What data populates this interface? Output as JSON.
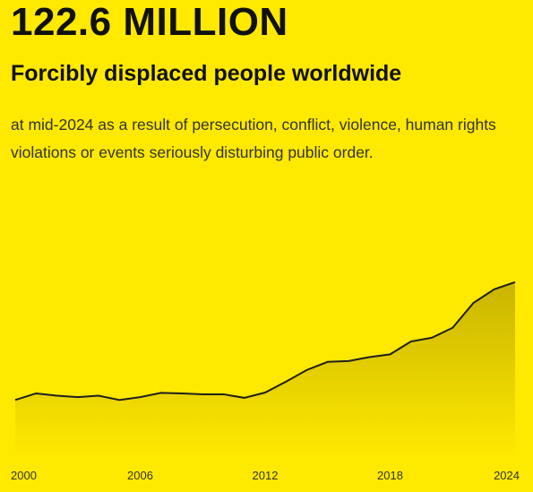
{
  "chart_data": {
    "type": "area",
    "title": "122.6 MILLION",
    "subtitle": "Forcibly displaced people worldwide",
    "description": "at mid-2024 as a result of persecution, conflict, violence, human rights violations or events seriously disturbing public order.",
    "x": [
      2000,
      2001,
      2002,
      2003,
      2004,
      2005,
      2006,
      2007,
      2008,
      2009,
      2010,
      2011,
      2012,
      2013,
      2014,
      2015,
      2016,
      2017,
      2018,
      2019,
      2020,
      2021,
      2022,
      2023,
      2024
    ],
    "values": [
      40,
      44.6,
      43,
      42,
      43,
      40,
      42,
      45,
      44.6,
      44,
      44,
      41.5,
      45.2,
      52.8,
      61,
      66.7,
      67.3,
      70,
      72,
      81,
      83.6,
      90.6,
      108,
      117.6,
      122.6
    ],
    "xlim": [
      2000,
      2024
    ],
    "xticks": [
      2000,
      2006,
      2012,
      2018,
      2024
    ],
    "ylim": [
      0,
      130
    ],
    "color": "#1f1f1f"
  }
}
